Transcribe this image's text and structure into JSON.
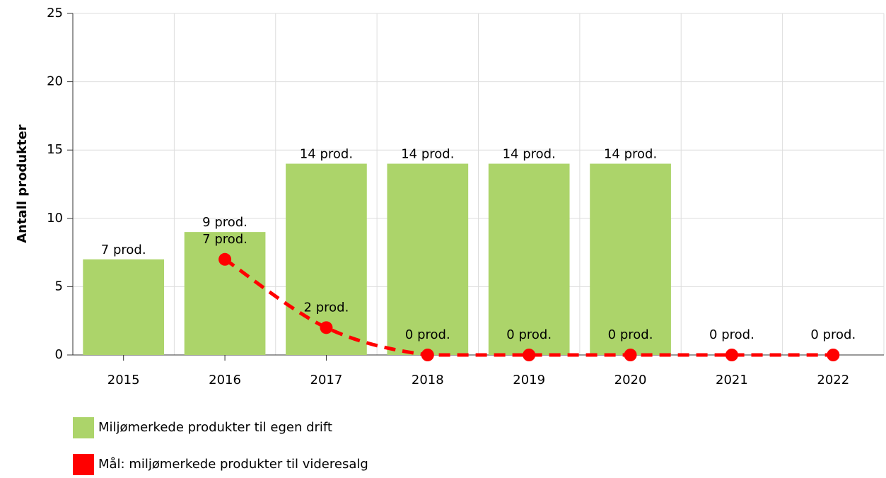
{
  "chart_data": {
    "type": "bar",
    "y_label": "Antall produkter",
    "categories": [
      "2015",
      "2016",
      "2017",
      "2018",
      "2019",
      "2020",
      "2021",
      "2022"
    ],
    "series": [
      {
        "name": "Miljømerkede produkter til egen drift",
        "type": "bar",
        "color": "#acd46a",
        "values": [
          7,
          9,
          14,
          14,
          14,
          14,
          null,
          null
        ],
        "value_labels": [
          "7 prod.",
          "9 prod.",
          "14 prod.",
          "14 prod.",
          "14 prod.",
          "14 prod.",
          null,
          null
        ]
      },
      {
        "name": "Mål: miljømerkede produkter til videresalg",
        "type": "line",
        "color": "#ff0000",
        "values": [
          null,
          7,
          2,
          0,
          0,
          0,
          0,
          0
        ],
        "value_labels": [
          null,
          "7 prod.",
          "2 prod.",
          "0 prod.",
          "0 prod.",
          "0 prod.",
          "0 prod.",
          "0 prod."
        ]
      }
    ],
    "ylim": [
      0,
      25
    ],
    "yticks": [
      0,
      5,
      10,
      15,
      20,
      25
    ],
    "grid": true
  }
}
